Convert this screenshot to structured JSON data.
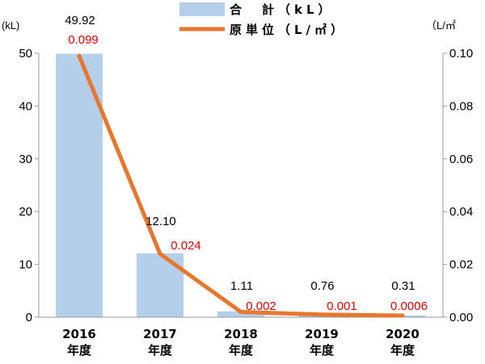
{
  "chart_data": {
    "type": "bar+line",
    "categories": [
      "2016\n年度",
      "2017\n年度",
      "2018\n年度",
      "2019\n年度",
      "2020\n年度"
    ],
    "left_axis": {
      "unit": "(kL)",
      "min": 0,
      "max": 50,
      "ticks": [
        "0",
        "10",
        "20",
        "30",
        "40",
        "50"
      ]
    },
    "right_axis": {
      "unit": "（L/㎡",
      "min": 0,
      "max": 0.1,
      "ticks": [
        "0.00",
        "0.02",
        "0.04",
        "0.06",
        "0.08",
        "0.10"
      ]
    },
    "series": [
      {
        "name": "合　計（kL）",
        "type": "bar",
        "axis": "left",
        "values": [
          49.92,
          12.1,
          1.11,
          0.76,
          0.31
        ],
        "labels": [
          "49.92",
          "12.10",
          "1.11",
          "0.76",
          "0.31"
        ],
        "color": "#b4cfe9"
      },
      {
        "name": "原単位（L/㎡）",
        "type": "line",
        "axis": "right",
        "values": [
          0.099,
          0.024,
          0.002,
          0.001,
          0.0006
        ],
        "labels": [
          "0.099",
          "0.024",
          "0.002",
          "0.001",
          "0.0006"
        ],
        "color": "#e8762d",
        "label_color": "#e00000"
      }
    ],
    "legend": "top-center",
    "grid": false
  }
}
